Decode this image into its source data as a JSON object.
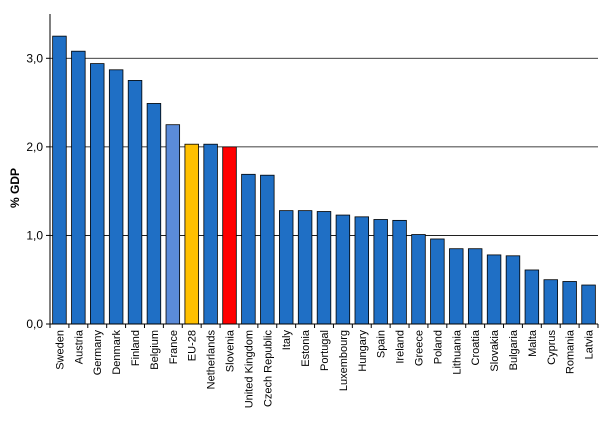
{
  "chart_data": {
    "type": "bar",
    "title": "",
    "xlabel": "",
    "ylabel": "% GDP",
    "ylim": [
      0,
      3.5
    ],
    "yticks": [
      "0,0",
      "1,0",
      "2,0",
      "3,0"
    ],
    "ytick_values": [
      0,
      1,
      2,
      3
    ],
    "grid": true,
    "categories": [
      "Sweden",
      "Austria",
      "Germany",
      "Denmark",
      "Finland",
      "Belgium",
      "France",
      "EU-28",
      "Netherlands",
      "Slovenia",
      "United Kingdom",
      "Czech Republic",
      "Italy",
      "Estonia",
      "Portugal",
      "Luxembourg",
      "Hungary",
      "Spain",
      "Ireland",
      "Greece",
      "Poland",
      "Lithuania",
      "Croatia",
      "Slovakia",
      "Bulgaria",
      "Malta",
      "Cyprus",
      "Romania",
      "Latvia"
    ],
    "values": [
      3.25,
      3.08,
      2.94,
      2.87,
      2.75,
      2.49,
      2.25,
      2.03,
      2.03,
      2.0,
      1.69,
      1.68,
      1.28,
      1.28,
      1.27,
      1.23,
      1.21,
      1.18,
      1.17,
      1.01,
      0.96,
      0.85,
      0.85,
      0.78,
      0.77,
      0.61,
      0.5,
      0.48,
      0.44
    ],
    "colors": {
      "default": "#1F6FC5",
      "highlight": {
        "France": "#5B8BD9",
        "EU-28": "#FFC000",
        "Slovenia": "#FF0000"
      }
    }
  }
}
